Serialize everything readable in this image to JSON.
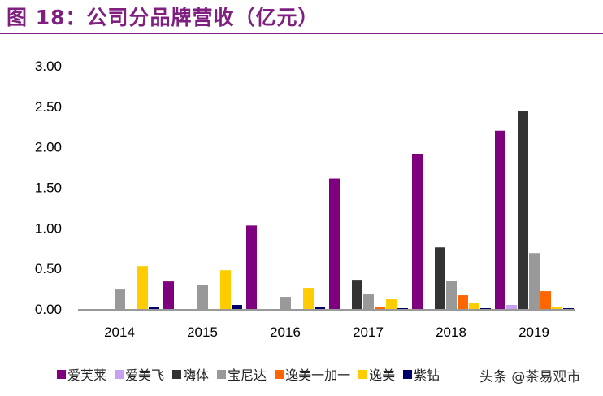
{
  "title": "图 18：公司分品牌营收（亿元）",
  "watermark": "头条 @茶易观市",
  "chart_data": {
    "type": "bar",
    "categories": [
      "2014",
      "2015",
      "2016",
      "2017",
      "2018",
      "2019"
    ],
    "ylim": [
      0,
      3
    ],
    "yticks": [
      "0.00",
      "0.50",
      "1.00",
      "1.50",
      "2.00",
      "2.50",
      "3.00"
    ],
    "legend": "bottom",
    "series": [
      {
        "name": "爱芙莱",
        "color": "#7f007f",
        "values": [
          0,
          0.34,
          1.03,
          1.61,
          1.91,
          2.2
        ]
      },
      {
        "name": "爱美飞",
        "color": "#c8a0f0",
        "values": [
          0,
          0,
          0,
          0,
          0,
          0.05
        ]
      },
      {
        "name": "嗨体",
        "color": "#333333",
        "values": [
          0,
          0,
          0,
          0.36,
          0.76,
          2.44
        ]
      },
      {
        "name": "宝尼达",
        "color": "#999999",
        "values": [
          0.24,
          0.3,
          0.15,
          0.18,
          0.35,
          0.69
        ]
      },
      {
        "name": "逸美一加一",
        "color": "#ff6600",
        "values": [
          0,
          0,
          0,
          0.02,
          0.17,
          0.22
        ]
      },
      {
        "name": "逸美",
        "color": "#ffcc00",
        "values": [
          0.53,
          0.48,
          0.26,
          0.12,
          0.07,
          0.03
        ]
      },
      {
        "name": "紫钻",
        "color": "#000066",
        "values": [
          0.02,
          0.05,
          0.02,
          0.01,
          0.01,
          0.01
        ]
      }
    ]
  }
}
